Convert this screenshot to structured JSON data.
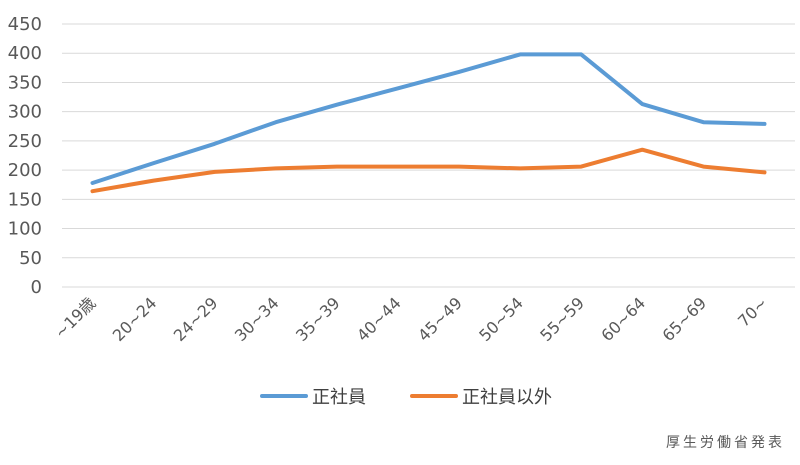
{
  "chart_data": {
    "type": "line",
    "categories": [
      "~19歳",
      "20~24",
      "24~29",
      "30~34",
      "35~39",
      "40~44",
      "45~49",
      "50~54",
      "55~59",
      "60~64",
      "65~69",
      "70~"
    ],
    "series": [
      {
        "name": "正社員",
        "color": "#5B9BD5",
        "values": [
          178,
          212,
          245,
          282,
          312,
          340,
          368,
          398,
          398,
          313,
          282,
          279
        ]
      },
      {
        "name": "正社員以外",
        "color": "#ED7D31",
        "values": [
          164,
          182,
          197,
          203,
          206,
          206,
          206,
          203,
          206,
          235,
          206,
          196
        ]
      }
    ],
    "ylim": [
      0,
      450
    ],
    "yticks": [
      0,
      50,
      100,
      150,
      200,
      250,
      300,
      350,
      400,
      450
    ],
    "grid": true,
    "legend": "bottom",
    "title": "",
    "xlabel": "",
    "ylabel": ""
  },
  "source": "厚生労働省発表"
}
